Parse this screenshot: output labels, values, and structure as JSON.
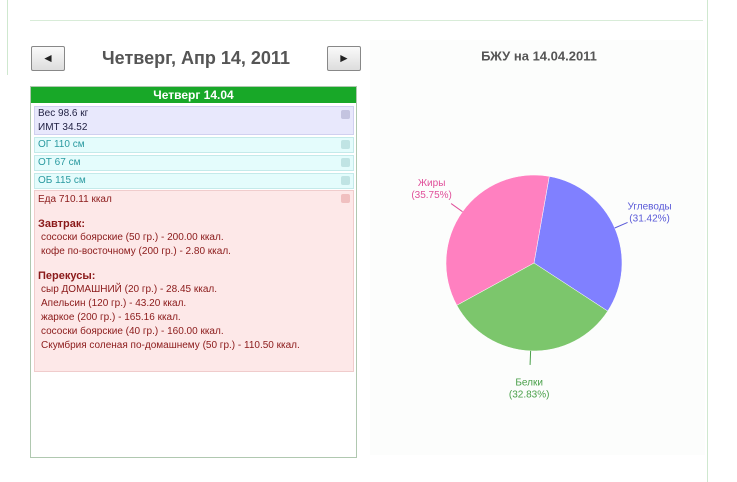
{
  "navigation": {
    "prev": "◄",
    "date": "Четверг, Апр 14, 2011",
    "next": "►"
  },
  "day": {
    "title": "Четверг 14.04",
    "weight": "Вес 98.6 кг",
    "bmi": "ИМТ 34.52",
    "measurements": [
      "ОГ 110 см",
      "ОТ 67 см",
      "ОБ 115 см"
    ],
    "food_total": "Еда 710.11 ккал",
    "meals": [
      {
        "name": "Завтрак:",
        "items": [
          "сососки боярские (50 гр.) - 200.00 ккал.",
          "кофе по-восточному (200 гр.) - 2.80 ккал."
        ]
      },
      {
        "name": "Перекусы:",
        "items": [
          "сыр ДОМАШНИЙ (20 гр.) - 28.45 ккал.",
          "Апельсин (120 гр.) - 43.20 ккал.",
          "жаркое (200 гр.) - 165.16 ккал.",
          "сососки боярские (40 гр.) - 160.00 ккал.",
          "Скумбрия соленая по-домашнему (50 гр.) - 110.50 ккал."
        ]
      }
    ]
  },
  "chart_data": {
    "type": "pie",
    "title": "БЖУ на 14.04.2011",
    "categories": [
      "Углеводы",
      "Белки",
      "Жиры"
    ],
    "values": [
      31.42,
      32.83,
      35.75
    ],
    "value_labels": [
      "(31.42%)",
      "(32.83%)",
      "(35.75%)"
    ],
    "colors": [
      "#8080ff",
      "#7cc66c",
      "#ff80c0"
    ],
    "label_colors": [
      "#5a5ad8",
      "#4aa04a",
      "#e0509a"
    ]
  }
}
